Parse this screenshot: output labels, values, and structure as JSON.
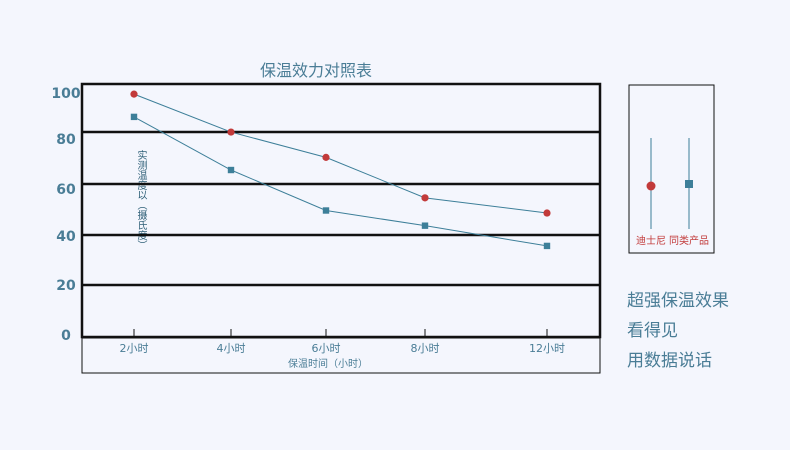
{
  "chart_data": {
    "type": "line",
    "title": "保温效力对照表",
    "xlabel": "保温时间（小时）",
    "ylabel": "实测温度以（摄氏度）",
    "categories": [
      "2小时",
      "4小时",
      "6小时",
      "8小时",
      "12小时"
    ],
    "x": [
      2,
      4,
      6,
      8,
      12
    ],
    "ylim": [
      0,
      100
    ],
    "yticks": [
      "100",
      "80",
      "60",
      "40",
      "20",
      "0"
    ],
    "series": [
      {
        "name": "迪士尼",
        "values": [
          96,
          81,
          71,
          55,
          49
        ],
        "color": "#c23a3a",
        "marker": "circle"
      },
      {
        "name": "同类产品",
        "values": [
          87,
          66,
          50,
          44,
          36
        ],
        "color": "#3d7f99",
        "marker": "square"
      }
    ],
    "legend_position": "right",
    "grid": true
  },
  "slogan": [
    "超强保温效果",
    "看得见",
    "用数据说话"
  ]
}
